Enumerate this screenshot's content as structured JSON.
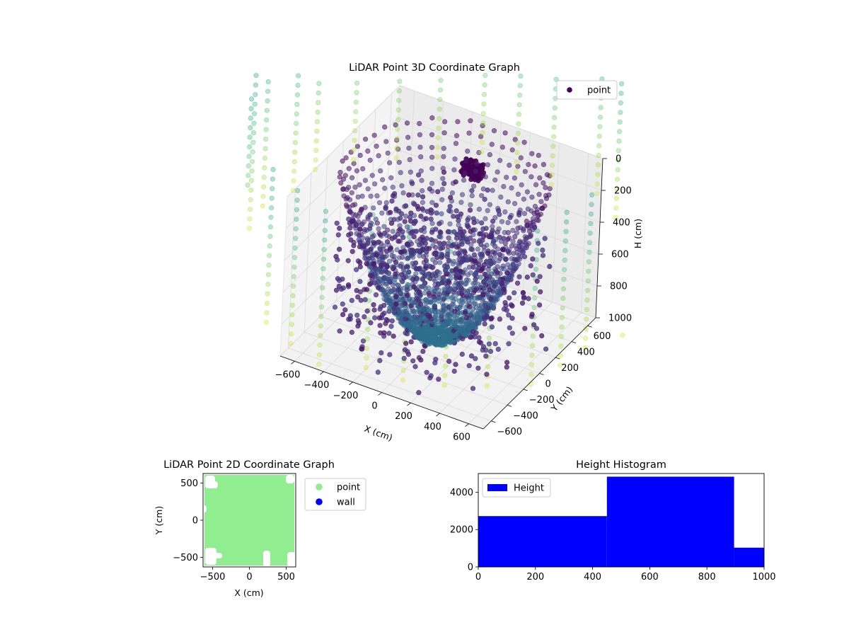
{
  "chart_data": [
    {
      "type": "scatter",
      "projection": "3d",
      "title": "LiDAR Point 3D Coordinate Graph",
      "xlabel": "X (cm)",
      "ylabel": "Y (cm)",
      "zlabel": "H (cm)",
      "xlim": [
        -700,
        700
      ],
      "ylim": [
        -700,
        700
      ],
      "zlim": [
        0,
        1000
      ],
      "z_inverted": true,
      "x_ticks": [
        "−600",
        "−400",
        "−200",
        "0",
        "200",
        "400",
        "600"
      ],
      "y_ticks": [
        "−600",
        "−400",
        "−200",
        "0",
        "200",
        "400",
        "600"
      ],
      "z_ticks": [
        "0",
        "200",
        "400",
        "600",
        "800",
        "1000"
      ],
      "legend": {
        "entries": [
          "point"
        ],
        "placement": "upper right"
      },
      "colormap": "viridis",
      "point_color": "#440154",
      "grid": true
    },
    {
      "type": "scatter",
      "title": "LiDAR Point 2D Coordinate Graph",
      "xlabel": "X (cm)",
      "ylabel": "Y (cm)",
      "xlim": [
        -630,
        630
      ],
      "ylim": [
        -630,
        630
      ],
      "x_ticks": [
        -500,
        0,
        500
      ],
      "y_ticks": [
        -500,
        0,
        500
      ],
      "legend": {
        "placement": "outside right"
      },
      "series": [
        {
          "name": "point",
          "color": "#90ee90"
        },
        {
          "name": "wall",
          "color": "#0000ff"
        }
      ]
    },
    {
      "type": "bar",
      "title": "Height Histogram",
      "xlim": [
        0,
        1000
      ],
      "ylim": [
        0,
        5000
      ],
      "x_ticks": [
        0,
        200,
        400,
        600,
        800,
        1000
      ],
      "y_ticks": [
        0,
        2000,
        4000
      ],
      "legend": {
        "entries": [
          "Height"
        ],
        "placement": "upper left"
      },
      "color": "#0000ff",
      "bins": [
        {
          "x0": 0,
          "x1": 450,
          "count": 2720
        },
        {
          "x0": 450,
          "x1": 895,
          "count": 4830
        },
        {
          "x0": 895,
          "x1": 1000,
          "count": 1030
        }
      ]
    }
  ]
}
